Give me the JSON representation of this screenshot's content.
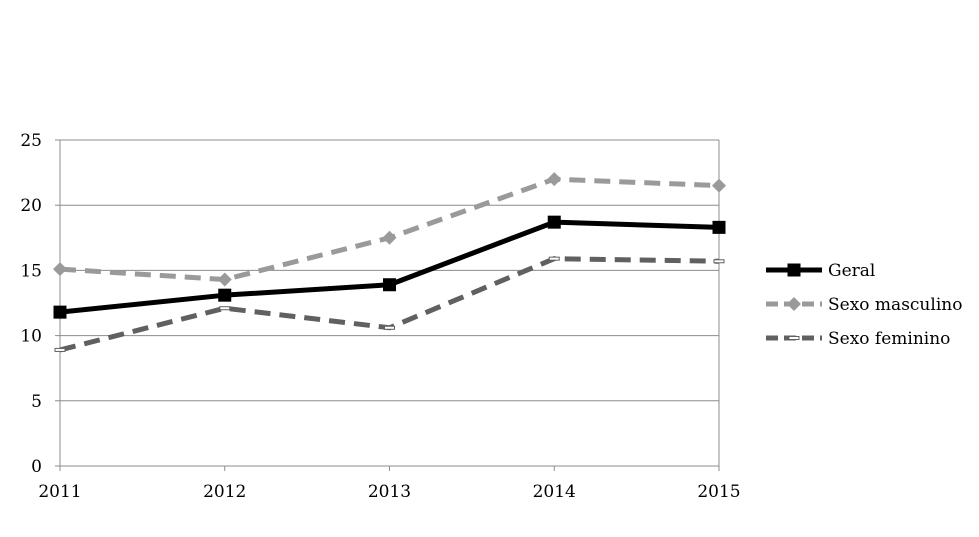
{
  "chart_data": {
    "type": "line",
    "title": "",
    "xlabel": "",
    "ylabel": "",
    "categories": [
      "2011",
      "2012",
      "2013",
      "2014",
      "2015"
    ],
    "ylim": [
      0,
      25
    ],
    "yticks": [
      0,
      5,
      10,
      15,
      20,
      25
    ],
    "grid": true,
    "legend_position": "right",
    "series": [
      {
        "name": "Geral",
        "values": [
          11.8,
          13.1,
          13.9,
          18.7,
          18.3
        ],
        "color": "#000000",
        "dash": "solid",
        "marker": "square"
      },
      {
        "name": "Sexo masculino",
        "values": [
          15.1,
          14.3,
          17.5,
          22.0,
          21.5
        ],
        "color": "#9a9a9a",
        "dash": "dashed",
        "marker": "diamond"
      },
      {
        "name": "Sexo feminino",
        "values": [
          8.9,
          12.1,
          10.6,
          15.9,
          15.7
        ],
        "color": "#606060",
        "dash": "dashed",
        "marker": "dash"
      }
    ]
  }
}
